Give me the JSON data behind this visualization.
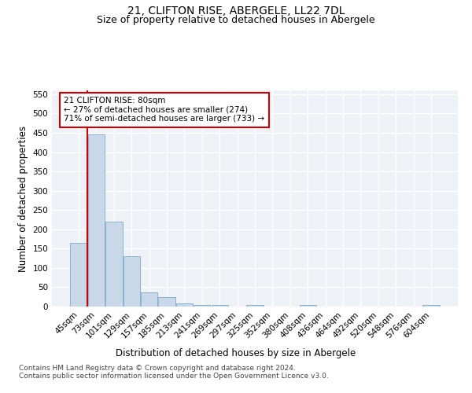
{
  "title": "21, CLIFTON RISE, ABERGELE, LL22 7DL",
  "subtitle": "Size of property relative to detached houses in Abergele",
  "xlabel": "Distribution of detached houses by size in Abergele",
  "ylabel": "Number of detached properties",
  "categories": [
    "45sqm",
    "73sqm",
    "101sqm",
    "129sqm",
    "157sqm",
    "185sqm",
    "213sqm",
    "241sqm",
    "269sqm",
    "297sqm",
    "325sqm",
    "352sqm",
    "380sqm",
    "408sqm",
    "436sqm",
    "464sqm",
    "492sqm",
    "520sqm",
    "548sqm",
    "576sqm",
    "604sqm"
  ],
  "values": [
    165,
    445,
    220,
    130,
    37,
    25,
    9,
    5,
    4,
    0,
    4,
    0,
    0,
    4,
    0,
    0,
    0,
    0,
    0,
    0,
    4
  ],
  "bar_color": "#c8d8e8",
  "bar_edge_color": "#7aaac8",
  "marker_label": "21 CLIFTON RISE: 80sqm",
  "annotation_line1": "← 27% of detached houses are smaller (274)",
  "annotation_line2": "71% of semi-detached houses are larger (733) →",
  "annotation_box_color": "#ffffff",
  "annotation_box_edge": "#cc0000",
  "marker_line_color": "#cc0000",
  "ylim": [
    0,
    560
  ],
  "yticks": [
    0,
    50,
    100,
    150,
    200,
    250,
    300,
    350,
    400,
    450,
    500,
    550
  ],
  "footer": "Contains HM Land Registry data © Crown copyright and database right 2024.\nContains public sector information licensed under the Open Government Licence v3.0.",
  "bg_color": "#eef2f7",
  "grid_color": "#ffffff",
  "title_fontsize": 10,
  "subtitle_fontsize": 9,
  "axis_label_fontsize": 8.5,
  "tick_fontsize": 7.5,
  "footer_fontsize": 6.5
}
